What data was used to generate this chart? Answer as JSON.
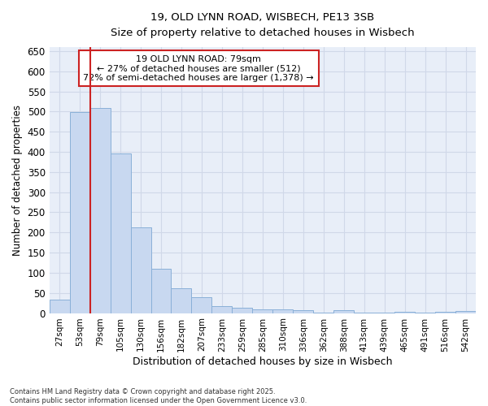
{
  "title_line1": "19, OLD LYNN ROAD, WISBECH, PE13 3SB",
  "title_line2": "Size of property relative to detached houses in Wisbech",
  "xlabel": "Distribution of detached houses by size in Wisbech",
  "ylabel": "Number of detached properties",
  "categories": [
    "27sqm",
    "53sqm",
    "79sqm",
    "105sqm",
    "130sqm",
    "156sqm",
    "182sqm",
    "207sqm",
    "233sqm",
    "259sqm",
    "285sqm",
    "310sqm",
    "336sqm",
    "362sqm",
    "388sqm",
    "413sqm",
    "439sqm",
    "465sqm",
    "491sqm",
    "516sqm",
    "542sqm"
  ],
  "values": [
    33,
    498,
    508,
    395,
    212,
    110,
    62,
    40,
    17,
    14,
    9,
    9,
    8,
    1,
    7,
    1,
    1,
    3,
    1,
    3,
    5
  ],
  "bar_color": "#c8d8f0",
  "bar_edge_color": "#8ab0d8",
  "highlight_index": 2,
  "highlight_color": "#cc2222",
  "annotation_title": "19 OLD LYNN ROAD: 79sqm",
  "annotation_line2": "← 27% of detached houses are smaller (512)",
  "annotation_line3": "72% of semi-detached houses are larger (1,378) →",
  "annotation_box_color": "#ffffff",
  "annotation_box_edge": "#cc2222",
  "ylim": [
    0,
    660
  ],
  "yticks": [
    0,
    50,
    100,
    150,
    200,
    250,
    300,
    350,
    400,
    450,
    500,
    550,
    600,
    650
  ],
  "footer_line1": "Contains HM Land Registry data © Crown copyright and database right 2025.",
  "footer_line2": "Contains public sector information licensed under the Open Government Licence v3.0.",
  "background_color": "#ffffff",
  "grid_color": "#d0d8e8",
  "plot_bg_color": "#e8eef8"
}
